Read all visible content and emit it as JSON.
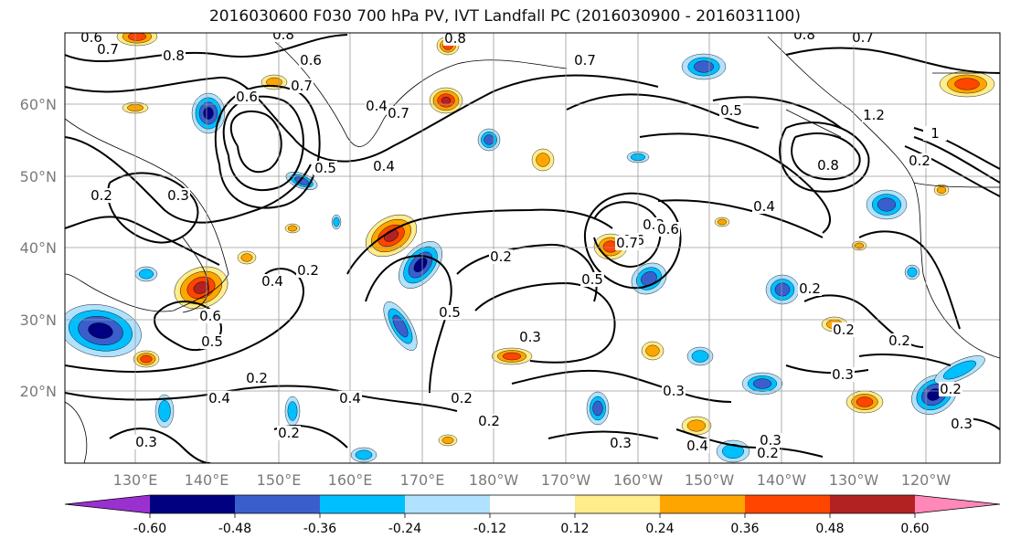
{
  "title": "2016030600 F030 700 hPa PV, IVT Landfall PC (2016030900 - 2016031100)",
  "map": {
    "lat_labels": [
      "60°N",
      "50°N",
      "40°N",
      "30°N",
      "20°N"
    ],
    "lon_labels": [
      "130°E",
      "140°E",
      "150°E",
      "160°E",
      "170°E",
      "180°W",
      "170°W",
      "160°W",
      "150°W",
      "140°W",
      "130°W",
      "120°W"
    ],
    "contour_labels": [
      "0.6",
      "0.7",
      "0.8",
      "0.6",
      "0.8",
      "0.6",
      "0.7",
      "0.4",
      "0.5",
      "0.7",
      "0.8",
      "0.7",
      "0.8",
      "0.7",
      "0.2",
      "1.2",
      "1",
      "0.2",
      "0.8",
      "0.5",
      "0.4",
      "0.3",
      "0.2",
      "0.5",
      "0.4",
      "0.6",
      "0.3",
      "0.4",
      "0.2",
      "0.4",
      "0.6",
      "0.5",
      "0.2",
      "0.4",
      "0.5",
      "0.3",
      "0.2",
      "0.2",
      "0.3",
      "0.2",
      "0.2",
      "0.2",
      "0.2",
      "0.3",
      "0.3",
      "0.3",
      "0.4",
      "0.2",
      "0.3",
      "0.2",
      "0.3",
      "0.7",
      "0.6"
    ]
  },
  "colorbar": {
    "colors": [
      "#9b30d0",
      "#000080",
      "#3a5fcd",
      "#00bfff",
      "#b0e2ff",
      "#ffffff",
      "#ffec8b",
      "#ffa500",
      "#ff4500",
      "#b22222",
      "#ff88b8"
    ],
    "tick_labels": [
      "-0.60",
      "-0.48",
      "-0.36",
      "-0.24",
      "-0.12",
      "0.12",
      "0.24",
      "0.36",
      "0.48",
      "0.60"
    ]
  },
  "colors": {
    "negative_core": "#000080",
    "negative": "#3a5fcd",
    "negative_light": "#00bfff",
    "negative_faint": "#b0e2ff",
    "positive_faint": "#ffec8b",
    "positive": "#ffa500",
    "positive_strong": "#ff4500",
    "positive_core": "#b22222",
    "contour": "#000000",
    "grid": "#9a9a9a"
  }
}
